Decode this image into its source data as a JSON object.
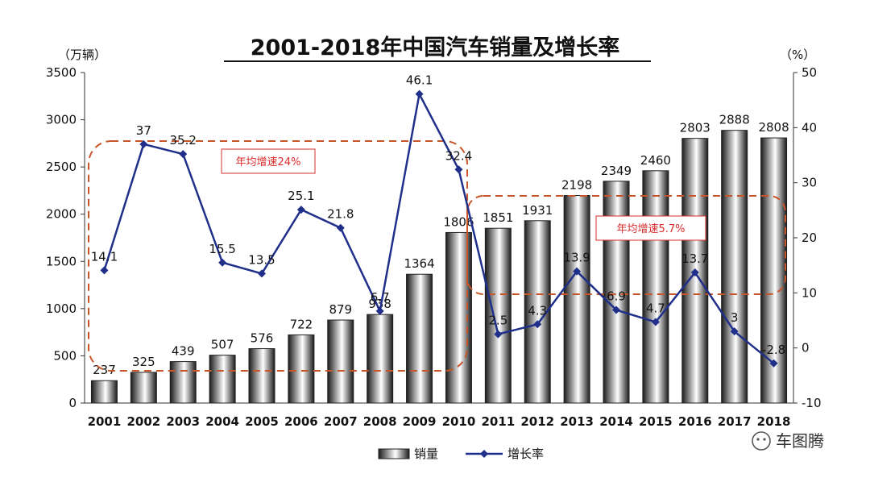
{
  "colors": {
    "line": "#1f2f8a",
    "bar_edge": "#222222",
    "bar_dark": "#1a1a1a",
    "bar_light": "#ffffff",
    "anno_text": "#d92b2b",
    "anno_dash": "#c8552a"
  },
  "chart_data": {
    "type": "bar",
    "title": "2001-2018年中国汽车销量及增长率",
    "y_left_unit": "（万辆）",
    "y_right_unit": "（%）",
    "ylim_left": [
      0,
      3500
    ],
    "ylim_right": [
      -10,
      50
    ],
    "yticks_left": [
      "0",
      "500",
      "1000",
      "1500",
      "2000",
      "2500",
      "3000",
      "3500"
    ],
    "yticks_right": [
      "-10",
      "0",
      "10",
      "20",
      "30",
      "40",
      "50"
    ],
    "categories": [
      "2001",
      "2002",
      "2003",
      "2004",
      "2005",
      "2006",
      "2007",
      "2008",
      "2009",
      "2010",
      "2011",
      "2012",
      "2013",
      "2014",
      "2015",
      "2016",
      "2017",
      "2018"
    ],
    "series": [
      {
        "name": "销量",
        "type": "bar",
        "axis": "left",
        "values": [
          237,
          325,
          439,
          507,
          576,
          722,
          879,
          938,
          1364,
          1806,
          1851,
          1931,
          2198,
          2349,
          2460,
          2803,
          2888,
          2808
        ],
        "labels": [
          "237",
          "325",
          "439",
          "507",
          "576",
          "722",
          "879",
          "938",
          "1364",
          "1806",
          "1851",
          "1931",
          "2198",
          "2349",
          "2460",
          "2803",
          "2888",
          "2808"
        ]
      },
      {
        "name": "增长率",
        "type": "line",
        "axis": "right",
        "values": [
          14.1,
          37,
          35.2,
          15.5,
          13.5,
          25.1,
          21.8,
          6.7,
          46.1,
          32.4,
          2.5,
          4.3,
          13.9,
          6.9,
          4.7,
          13.7,
          3,
          -2.8
        ],
        "labels": [
          "14.1",
          "37",
          "35.2",
          "15.5",
          "13.5",
          "25.1",
          "21.8",
          "6.7",
          "46.1",
          "32.4",
          "2.5",
          "4.3",
          "13.9",
          "6.9",
          "4.7",
          "13.7",
          "3",
          "-2.8"
        ]
      }
    ],
    "annotations": [
      "年均增速24%",
      "年均增速5.7%"
    ],
    "legend": [
      "销量",
      "增长率"
    ],
    "legend_position": "bottom"
  },
  "watermark": "车图腾"
}
